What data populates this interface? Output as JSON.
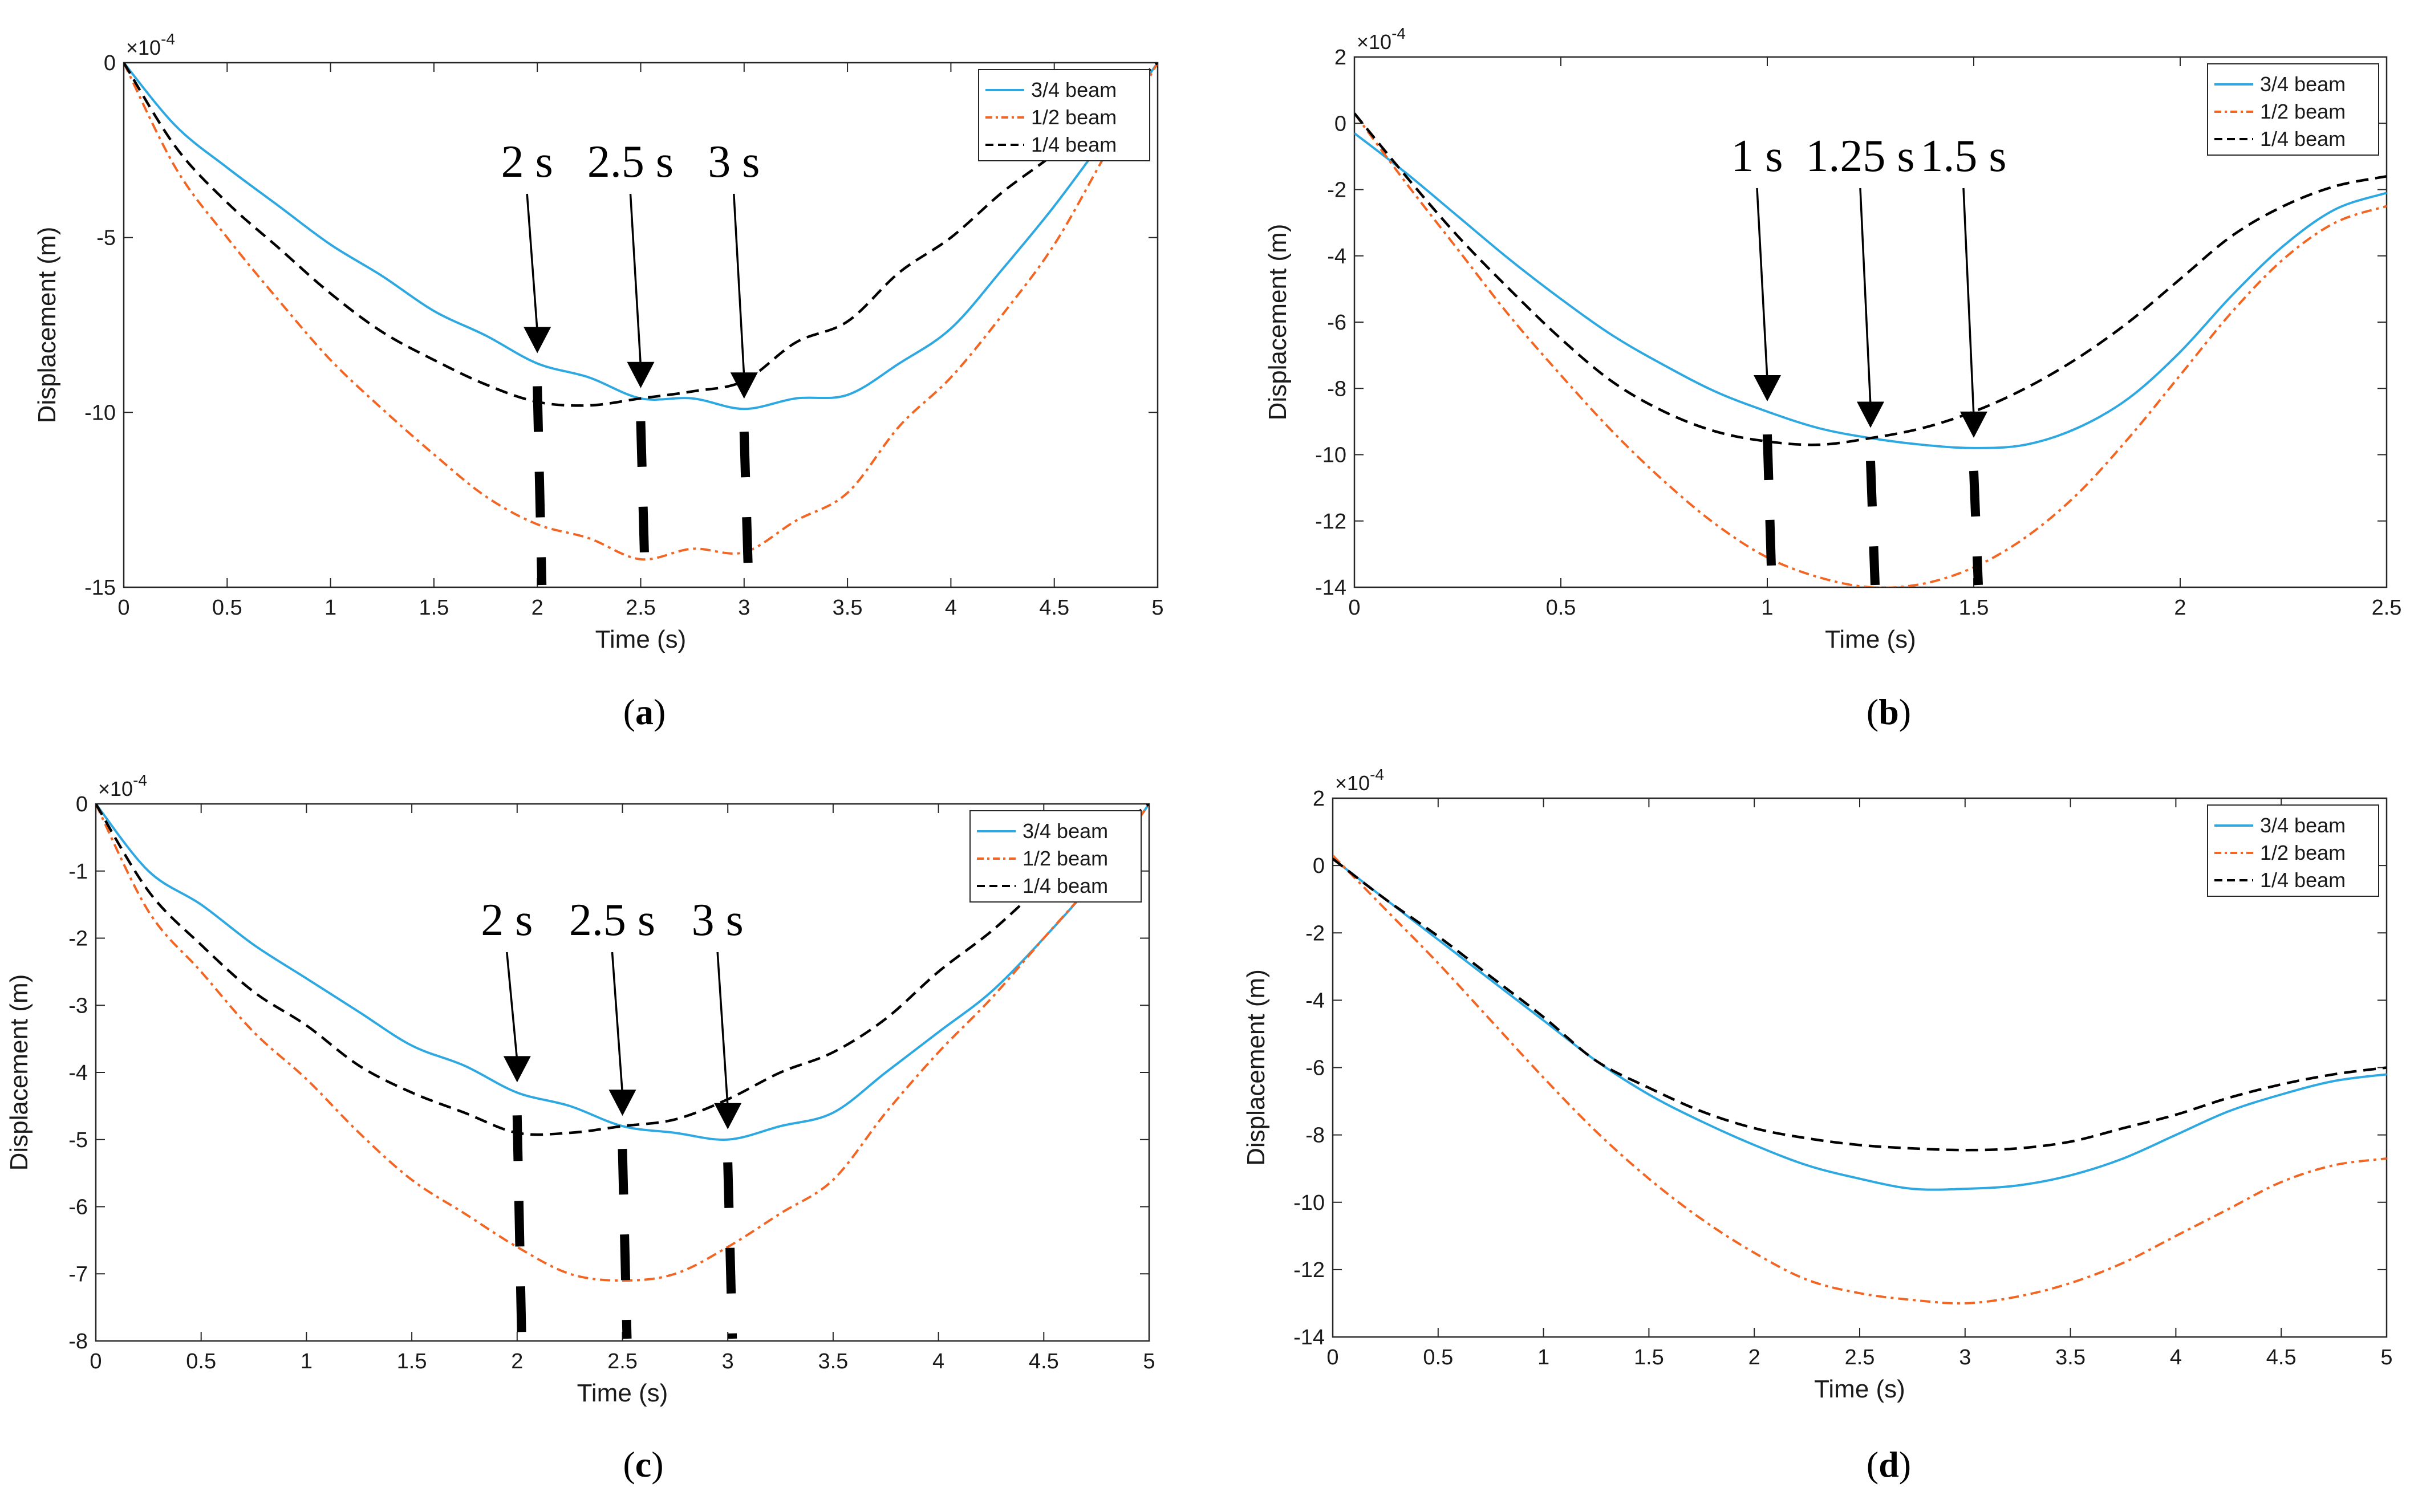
{
  "figure": {
    "series_colors": [
      "#2ea8e0",
      "#f26522",
      "#000000"
    ],
    "series_styles": [
      "solid",
      "dashdot",
      "dash"
    ]
  },
  "chart_data": [
    {
      "type": "line",
      "panel_label": "a",
      "xlabel": "Time (s)",
      "ylabel": "Displacement (m)",
      "y_exponent": "×10^-4",
      "xlim": [
        0,
        5
      ],
      "ylim": [
        -15,
        0
      ],
      "xticks": [
        0,
        0.5,
        1,
        1.5,
        2,
        2.5,
        3,
        3.5,
        4,
        4.5,
        5
      ],
      "xtick_labels": [
        "0",
        "0.5",
        "1",
        "1.5",
        "2",
        "2.5",
        "3",
        "3.5",
        "4",
        "4.5",
        "5"
      ],
      "yticks": [
        0,
        -5,
        -10,
        -15
      ],
      "ytick_labels": [
        "0",
        "-5",
        "-10",
        "-15"
      ],
      "legend_position": "top-right",
      "series": [
        {
          "name": "3/4 beam",
          "x": [
            0,
            0.25,
            0.5,
            0.75,
            1.0,
            1.25,
            1.5,
            1.75,
            2.0,
            2.25,
            2.5,
            2.75,
            3.0,
            3.25,
            3.5,
            3.75,
            4.0,
            4.25,
            4.5,
            4.75,
            5.0
          ],
          "y": [
            0,
            -1.8,
            -3.0,
            -4.1,
            -5.2,
            -6.1,
            -7.1,
            -7.8,
            -8.6,
            -9.0,
            -9.6,
            -9.6,
            -9.9,
            -9.6,
            -9.5,
            -8.6,
            -7.6,
            -5.9,
            -4.1,
            -2.1,
            0
          ]
        },
        {
          "name": "1/2 beam",
          "x": [
            0,
            0.25,
            0.5,
            0.75,
            1.0,
            1.25,
            1.5,
            1.75,
            2.0,
            2.25,
            2.5,
            2.75,
            3.0,
            3.25,
            3.5,
            3.75,
            4.0,
            4.25,
            4.5,
            4.75,
            5.0
          ],
          "y": [
            0,
            -3.0,
            -5.0,
            -6.8,
            -8.5,
            -9.9,
            -11.2,
            -12.4,
            -13.2,
            -13.6,
            -14.2,
            -13.9,
            -14.0,
            -13.1,
            -12.3,
            -10.4,
            -9.0,
            -7.2,
            -5.2,
            -2.6,
            0
          ]
        },
        {
          "name": "1/4 beam",
          "x": [
            0,
            0.25,
            0.5,
            0.75,
            1.0,
            1.25,
            1.5,
            1.75,
            2.0,
            2.25,
            2.5,
            2.75,
            3.0,
            3.25,
            3.5,
            3.75,
            4.0,
            4.25,
            4.5,
            4.75,
            5.0
          ],
          "y": [
            0,
            -2.4,
            -4.0,
            -5.3,
            -6.6,
            -7.7,
            -8.5,
            -9.2,
            -9.7,
            -9.8,
            -9.6,
            -9.4,
            -9.1,
            -8.0,
            -7.4,
            -6.0,
            -5.0,
            -3.7,
            -2.6,
            -1.3,
            0
          ]
        }
      ],
      "annotations": [
        {
          "text": "2 s",
          "x": 2.0
        },
        {
          "text": "2.5 s",
          "x": 2.5
        },
        {
          "text": "3 s",
          "x": 3.0
        }
      ]
    },
    {
      "type": "line",
      "panel_label": "b",
      "xlabel": "Time (s)",
      "ylabel": "Displacement (m)",
      "y_exponent": "×10^-4",
      "xlim": [
        0,
        2.5
      ],
      "ylim": [
        -14,
        2
      ],
      "xticks": [
        0,
        0.5,
        1,
        1.5,
        2,
        2.5
      ],
      "xtick_labels": [
        "0",
        "0.5",
        "1",
        "1.5",
        "2",
        "2.5"
      ],
      "yticks": [
        2,
        0,
        -2,
        -4,
        -6,
        -8,
        -10,
        -12,
        -14
      ],
      "ytick_labels": [
        "2",
        "0",
        "-2",
        "-4",
        "-6",
        "-8",
        "-10",
        "-12",
        "-14"
      ],
      "legend_position": "top-right",
      "series": [
        {
          "name": "3/4 beam",
          "x": [
            0,
            0.125,
            0.25,
            0.375,
            0.5,
            0.625,
            0.75,
            0.875,
            1.0,
            1.125,
            1.25,
            1.375,
            1.5,
            1.625,
            1.75,
            1.875,
            2.0,
            2.125,
            2.25,
            2.375,
            2.5
          ],
          "y": [
            -0.3,
            -1.5,
            -2.8,
            -4.1,
            -5.3,
            -6.4,
            -7.3,
            -8.1,
            -8.7,
            -9.2,
            -9.5,
            -9.7,
            -9.8,
            -9.7,
            -9.2,
            -8.3,
            -6.9,
            -5.2,
            -3.7,
            -2.6,
            -2.1
          ]
        },
        {
          "name": "1/2 beam",
          "x": [
            0,
            0.125,
            0.25,
            0.375,
            0.5,
            0.625,
            0.75,
            0.875,
            1.0,
            1.125,
            1.25,
            1.375,
            1.5,
            1.625,
            1.75,
            1.875,
            2.0,
            2.125,
            2.25,
            2.375,
            2.5
          ],
          "y": [
            0.3,
            -1.8,
            -3.8,
            -5.8,
            -7.6,
            -9.3,
            -10.8,
            -12.1,
            -13.1,
            -13.7,
            -14.0,
            -13.9,
            -13.4,
            -12.5,
            -11.2,
            -9.5,
            -7.6,
            -5.7,
            -4.1,
            -3.0,
            -2.5
          ]
        },
        {
          "name": "1/4 beam",
          "x": [
            0,
            0.125,
            0.25,
            0.375,
            0.5,
            0.625,
            0.75,
            0.875,
            1.0,
            1.125,
            1.25,
            1.375,
            1.5,
            1.625,
            1.75,
            1.875,
            2.0,
            2.125,
            2.25,
            2.375,
            2.5
          ],
          "y": [
            0.3,
            -1.6,
            -3.4,
            -5.0,
            -6.5,
            -7.8,
            -8.7,
            -9.3,
            -9.6,
            -9.7,
            -9.5,
            -9.2,
            -8.7,
            -8.0,
            -7.1,
            -6.0,
            -4.7,
            -3.4,
            -2.5,
            -1.9,
            -1.6
          ]
        }
      ],
      "annotations": [
        {
          "text": "1 s",
          "x": 1.0
        },
        {
          "text": "1.25 s",
          "x": 1.25
        },
        {
          "text": "1.5 s",
          "x": 1.5
        }
      ]
    },
    {
      "type": "line",
      "panel_label": "c",
      "xlabel": "Time (s)",
      "ylabel": "Displacement (m)",
      "y_exponent": "×10^-4",
      "xlim": [
        0,
        5
      ],
      "ylim": [
        -8,
        0
      ],
      "xticks": [
        0,
        0.5,
        1,
        1.5,
        2,
        2.5,
        3,
        3.5,
        4,
        4.5,
        5
      ],
      "xtick_labels": [
        "0",
        "0.5",
        "1",
        "1.5",
        "2",
        "2.5",
        "3",
        "3.5",
        "4",
        "4.5",
        "5"
      ],
      "yticks": [
        0,
        -1,
        -2,
        -3,
        -4,
        -5,
        -6,
        -7,
        -8
      ],
      "ytick_labels": [
        "0",
        "-1",
        "-2",
        "-3",
        "-4",
        "-5",
        "-6",
        "-7",
        "-8"
      ],
      "legend_position": "top-right",
      "series": [
        {
          "name": "3/4 beam",
          "x": [
            0,
            0.25,
            0.5,
            0.75,
            1.0,
            1.25,
            1.5,
            1.75,
            2.0,
            2.25,
            2.5,
            2.75,
            3.0,
            3.25,
            3.5,
            3.75,
            4.0,
            4.25,
            4.5,
            4.75,
            5.0
          ],
          "y": [
            0,
            -1.0,
            -1.5,
            -2.1,
            -2.6,
            -3.1,
            -3.6,
            -3.9,
            -4.3,
            -4.5,
            -4.8,
            -4.9,
            -5.0,
            -4.8,
            -4.6,
            -4.0,
            -3.4,
            -2.8,
            -2.0,
            -1.1,
            0
          ]
        },
        {
          "name": "1/2 beam",
          "x": [
            0,
            0.25,
            0.5,
            0.75,
            1.0,
            1.25,
            1.5,
            1.75,
            2.0,
            2.25,
            2.5,
            2.75,
            3.0,
            3.25,
            3.5,
            3.75,
            4.0,
            4.25,
            4.5,
            4.75,
            5.0
          ],
          "y": [
            0,
            -1.6,
            -2.5,
            -3.4,
            -4.1,
            -4.9,
            -5.6,
            -6.1,
            -6.6,
            -7.0,
            -7.1,
            -7.0,
            -6.6,
            -6.1,
            -5.6,
            -4.6,
            -3.7,
            -2.9,
            -2.0,
            -1.1,
            0
          ]
        },
        {
          "name": "1/4 beam",
          "x": [
            0,
            0.25,
            0.5,
            0.75,
            1.0,
            1.25,
            1.5,
            1.75,
            2.0,
            2.25,
            2.5,
            2.75,
            3.0,
            3.25,
            3.5,
            3.75,
            4.0,
            4.25,
            4.5,
            4.75,
            5.0
          ],
          "y": [
            0,
            -1.3,
            -2.1,
            -2.8,
            -3.3,
            -3.9,
            -4.3,
            -4.6,
            -4.9,
            -4.9,
            -4.8,
            -4.7,
            -4.4,
            -4.0,
            -3.7,
            -3.2,
            -2.5,
            -1.9,
            -1.2,
            -0.6,
            0
          ]
        }
      ],
      "annotations": [
        {
          "text": "2 s",
          "x": 2.0
        },
        {
          "text": "2.5 s",
          "x": 2.5
        },
        {
          "text": "3 s",
          "x": 3.0
        }
      ]
    },
    {
      "type": "line",
      "panel_label": "d",
      "xlabel": "Time (s)",
      "ylabel": "Displacement (m)",
      "y_exponent": "×10^-4",
      "xlim": [
        0,
        5
      ],
      "ylim": [
        -14,
        2
      ],
      "xticks": [
        0,
        0.5,
        1,
        1.5,
        2,
        2.5,
        3,
        3.5,
        4,
        4.5,
        5
      ],
      "xtick_labels": [
        "0",
        "0.5",
        "1",
        "1.5",
        "2",
        "2.5",
        "3",
        "3.5",
        "4",
        "4.5",
        "5"
      ],
      "yticks": [
        2,
        0,
        -2,
        -4,
        -6,
        -8,
        -10,
        -12,
        -14
      ],
      "ytick_labels": [
        "2",
        "0",
        "-2",
        "-4",
        "-6",
        "-8",
        "-10",
        "-12",
        "-14"
      ],
      "legend_position": "top-right",
      "series": [
        {
          "name": "3/4 beam",
          "x": [
            0,
            0.25,
            0.5,
            0.75,
            1.0,
            1.25,
            1.5,
            1.75,
            2.0,
            2.25,
            2.5,
            2.75,
            3.0,
            3.25,
            3.5,
            3.75,
            4.0,
            4.25,
            4.5,
            4.75,
            5.0
          ],
          "y": [
            0.2,
            -1.0,
            -2.2,
            -3.4,
            -4.6,
            -5.8,
            -6.8,
            -7.6,
            -8.3,
            -8.9,
            -9.3,
            -9.6,
            -9.6,
            -9.5,
            -9.2,
            -8.7,
            -8.0,
            -7.3,
            -6.8,
            -6.4,
            -6.2
          ]
        },
        {
          "name": "1/2 beam",
          "x": [
            0,
            0.25,
            0.5,
            0.75,
            1.0,
            1.25,
            1.5,
            1.75,
            2.0,
            2.25,
            2.5,
            2.75,
            3.0,
            3.25,
            3.5,
            3.75,
            4.0,
            4.25,
            4.5,
            4.75,
            5.0
          ],
          "y": [
            0.3,
            -1.3,
            -2.9,
            -4.6,
            -6.3,
            -7.9,
            -9.3,
            -10.5,
            -11.5,
            -12.3,
            -12.7,
            -12.9,
            -13.0,
            -12.8,
            -12.4,
            -11.8,
            -11.0,
            -10.2,
            -9.4,
            -8.9,
            -8.7
          ]
        },
        {
          "name": "1/4 beam",
          "x": [
            0,
            0.25,
            0.5,
            0.75,
            1.0,
            1.25,
            1.5,
            1.75,
            2.0,
            2.25,
            2.5,
            2.75,
            3.0,
            3.25,
            3.5,
            3.75,
            4.0,
            4.25,
            4.5,
            4.75,
            5.0
          ],
          "y": [
            0.2,
            -1.0,
            -2.1,
            -3.3,
            -4.5,
            -5.8,
            -6.6,
            -7.3,
            -7.8,
            -8.1,
            -8.3,
            -8.4,
            -8.45,
            -8.4,
            -8.2,
            -7.8,
            -7.4,
            -6.9,
            -6.5,
            -6.2,
            -6.0
          ]
        }
      ],
      "annotations": []
    }
  ]
}
